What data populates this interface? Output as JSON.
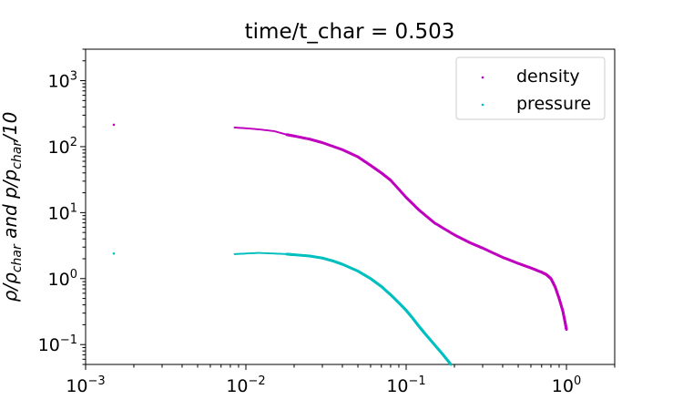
{
  "chart_data": {
    "type": "scatter",
    "title": "time/t_char = 0.503",
    "xlabel": "",
    "ylabel": "ρ/ρ_char and p/p_char/10",
    "xscale": "log",
    "yscale": "log",
    "xlim": [
      0.001,
      2.0
    ],
    "ylim": [
      0.05,
      3000
    ],
    "x_ticks": [
      {
        "value": 0.001,
        "base": "10",
        "exp": "−3"
      },
      {
        "value": 0.01,
        "base": "10",
        "exp": "−2"
      },
      {
        "value": 0.1,
        "base": "10",
        "exp": "−1"
      },
      {
        "value": 1,
        "base": "10",
        "exp": "0"
      }
    ],
    "y_ticks": [
      {
        "value": 0.1,
        "base": "10",
        "exp": "−1"
      },
      {
        "value": 1,
        "base": "10",
        "exp": "0"
      },
      {
        "value": 10,
        "base": "10",
        "exp": "1"
      },
      {
        "value": 100,
        "base": "10",
        "exp": "2"
      },
      {
        "value": 1000,
        "base": "10",
        "exp": "3"
      }
    ],
    "legend_position": "top-right",
    "series": [
      {
        "name": "density",
        "color": "#bf00bf",
        "x": [
          0.0015,
          0.0085,
          0.01,
          0.012,
          0.015,
          0.018,
          0.02,
          0.025,
          0.03,
          0.04,
          0.05,
          0.06,
          0.07,
          0.08,
          0.1,
          0.12,
          0.15,
          0.2,
          0.25,
          0.3,
          0.4,
          0.5,
          0.6,
          0.7,
          0.75,
          0.8,
          0.85,
          0.9,
          0.95,
          0.98,
          1.0
        ],
        "y": [
          215,
          195,
          190,
          183,
          172,
          152,
          145,
          130,
          115,
          90,
          70,
          52,
          40,
          31,
          17,
          11,
          7,
          4.6,
          3.5,
          2.9,
          2.1,
          1.7,
          1.45,
          1.25,
          1.15,
          1.0,
          0.75,
          0.5,
          0.32,
          0.22,
          0.17
        ]
      },
      {
        "name": "pressure",
        "color": "#00bfbf",
        "x": [
          0.0015,
          0.0085,
          0.01,
          0.012,
          0.015,
          0.018,
          0.02,
          0.025,
          0.03,
          0.035,
          0.04,
          0.05,
          0.06,
          0.07,
          0.08,
          0.09,
          0.1,
          0.11,
          0.12,
          0.13,
          0.15,
          0.17,
          0.19
        ],
        "y": [
          2.4,
          2.35,
          2.4,
          2.45,
          2.4,
          2.35,
          2.3,
          2.2,
          2.05,
          1.85,
          1.65,
          1.3,
          1.0,
          0.76,
          0.57,
          0.43,
          0.33,
          0.25,
          0.19,
          0.15,
          0.1,
          0.07,
          0.05
        ]
      }
    ]
  }
}
